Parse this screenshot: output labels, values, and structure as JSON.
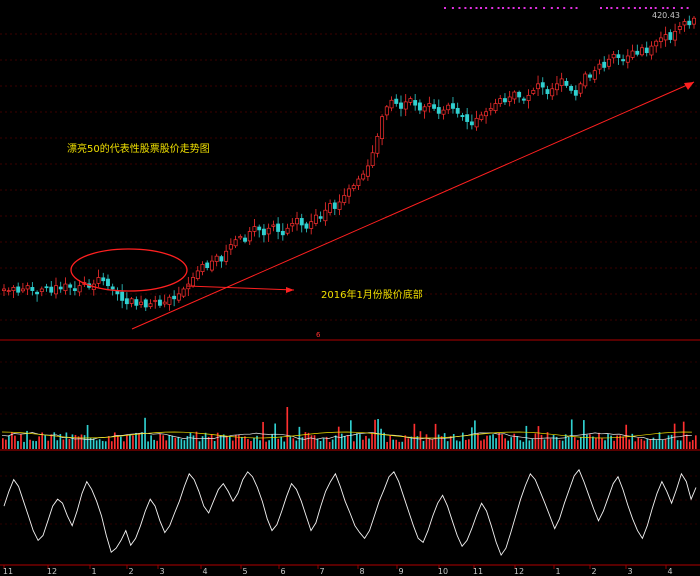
{
  "chart_data": {
    "type": "candlestick",
    "title": "",
    "price_panel": {
      "last_price_label": "420.43",
      "annotation_title": "漂亮50的代表性股票股价走势图",
      "annotation_bottom": "2016年1月份股价底部",
      "close_series": [
        255,
        254,
        256,
        253,
        255,
        257,
        254,
        252,
        255,
        256,
        253,
        257,
        255,
        258,
        256,
        254,
        257,
        259,
        256,
        258,
        262,
        260,
        257,
        255,
        252,
        248,
        246,
        249,
        245,
        247,
        244,
        246,
        248,
        245,
        247,
        250,
        249,
        252,
        255,
        258,
        262,
        266,
        270,
        268,
        272,
        275,
        272,
        278,
        282,
        285,
        287,
        284,
        290,
        293,
        291,
        288,
        292,
        294,
        290,
        288,
        292,
        295,
        298,
        294,
        292,
        296,
        300,
        298,
        303,
        307,
        304,
        308,
        312,
        316,
        318,
        322,
        325,
        330,
        338,
        348,
        360,
        366,
        370,
        368,
        365,
        369,
        371,
        367,
        364,
        366,
        368,
        365,
        362,
        364,
        367,
        365,
        362,
        360,
        357,
        355,
        359,
        361,
        363,
        365,
        368,
        371,
        369,
        372,
        375,
        372,
        370,
        373,
        376,
        380,
        378,
        374,
        377,
        380,
        383,
        379,
        376,
        373,
        380,
        386,
        384,
        388,
        392,
        390,
        395,
        398,
        396,
        394,
        397,
        400,
        398,
        402,
        399,
        403,
        406,
        408,
        410,
        407,
        412,
        415,
        418,
        416,
        420
      ],
      "x_tick_labels": [
        "11",
        "12",
        "1",
        "2",
        "3",
        "4",
        "5",
        "6",
        "7",
        "8",
        "9",
        "10",
        "11",
        "12",
        "1",
        "2",
        "3",
        "4"
      ]
    },
    "volume_panel": {
      "type": "bar"
    },
    "indicator_panel": {
      "type": "line",
      "values": [
        0.55,
        0.7,
        0.82,
        0.75,
        0.6,
        0.45,
        0.3,
        0.2,
        0.25,
        0.4,
        0.55,
        0.62,
        0.58,
        0.45,
        0.35,
        0.5,
        0.68,
        0.8,
        0.72,
        0.6,
        0.45,
        0.25,
        0.08,
        0.12,
        0.2,
        0.3,
        0.15,
        0.22,
        0.35,
        0.5,
        0.62,
        0.55,
        0.4,
        0.28,
        0.35,
        0.48,
        0.6,
        0.75,
        0.88,
        0.82,
        0.7,
        0.55,
        0.48,
        0.6,
        0.72,
        0.78,
        0.7,
        0.6,
        0.68,
        0.82,
        0.9,
        0.85,
        0.74,
        0.6,
        0.42,
        0.3,
        0.36,
        0.5,
        0.65,
        0.78,
        0.72,
        0.6,
        0.45,
        0.3,
        0.38,
        0.55,
        0.7,
        0.8,
        0.88,
        0.75,
        0.6,
        0.48,
        0.35,
        0.28,
        0.22,
        0.3,
        0.45,
        0.6,
        0.72,
        0.85,
        0.9,
        0.8,
        0.65,
        0.5,
        0.35,
        0.22,
        0.18,
        0.3,
        0.45,
        0.58,
        0.66,
        0.55,
        0.4,
        0.25,
        0.14,
        0.2,
        0.32,
        0.46,
        0.58,
        0.5,
        0.35,
        0.18,
        0.05,
        0.12,
        0.28,
        0.45,
        0.62,
        0.76,
        0.88,
        0.82,
        0.7,
        0.58,
        0.45,
        0.32,
        0.42,
        0.58,
        0.72,
        0.86,
        0.92,
        0.8,
        0.66,
        0.52,
        0.4,
        0.5,
        0.64,
        0.78,
        0.85,
        0.72,
        0.56,
        0.42,
        0.3,
        0.22,
        0.35,
        0.52,
        0.68,
        0.8,
        0.7,
        0.58,
        0.72,
        0.88,
        0.8,
        0.62,
        0.74
      ]
    }
  }
}
